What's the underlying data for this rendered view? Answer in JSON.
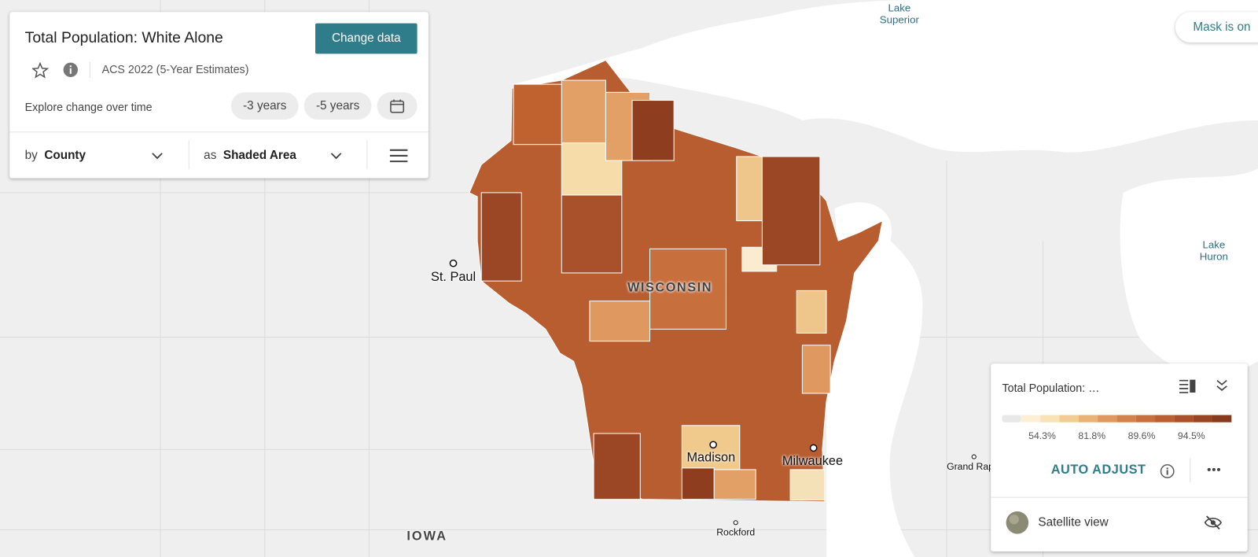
{
  "header": {
    "title": "Total Population: White Alone",
    "change_button": "Change data",
    "source": "ACS 2022 (5-Year Estimates)",
    "explore_label": "Explore change over time",
    "buttons": [
      "-3 years",
      "-5 years"
    ]
  },
  "selectors": [
    {
      "prefix": "by",
      "value": "County"
    },
    {
      "prefix": "as",
      "value": "Shaded Area"
    }
  ],
  "mask_button": "Mask is on",
  "map_labels": [
    "Lake Superior",
    "Lake Huron",
    "St. Paul",
    "WISCONSIN",
    "Madison",
    "Milwaukee",
    "Grand Rap",
    "Rockford",
    "IOWA"
  ],
  "legend": {
    "title": "Total Population: …",
    "colors": [
      "#e8e8e8",
      "#fcefd6",
      "#f8e2b8",
      "#f2cd93",
      "#e9b277",
      "#df9860",
      "#d4824c",
      "#c86f3e",
      "#b95f33",
      "#a9512b",
      "#984524",
      "#873a1c"
    ],
    "labels": [
      "54.3%",
      "81.8%",
      "89.6%",
      "94.5%"
    ],
    "auto_adjust": "AUTO ADJUST",
    "satellite": "Satellite view"
  }
}
